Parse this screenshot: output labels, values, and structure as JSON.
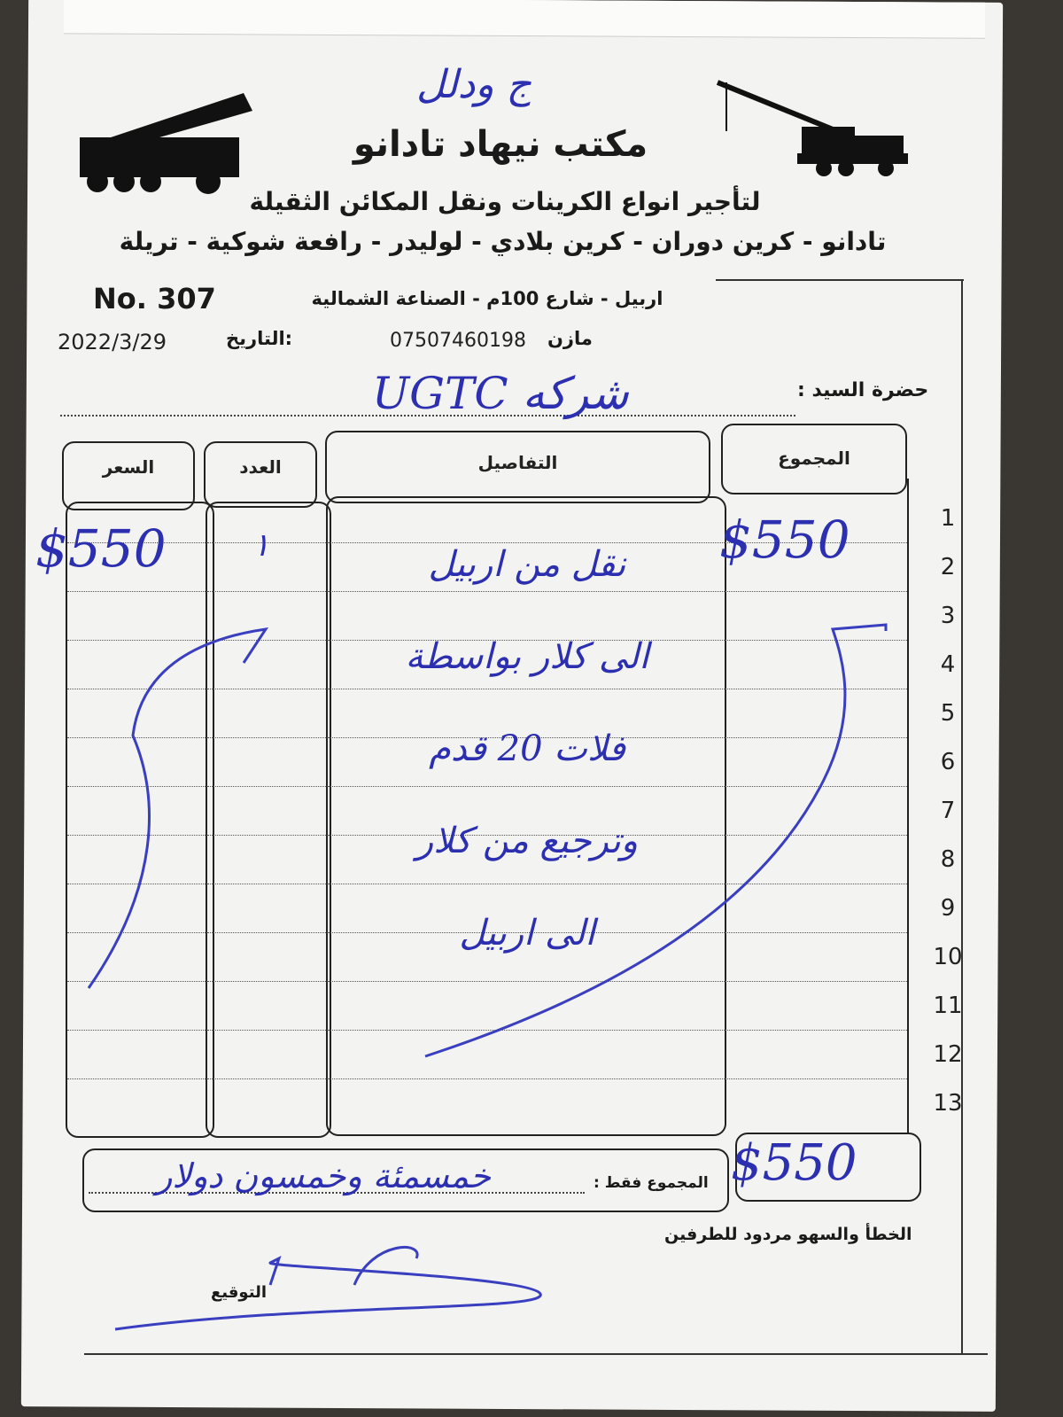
{
  "header": {
    "handwritten_note": "ج ودلل",
    "company_name": "مكتب نيهاد تادانو",
    "tagline": "لتأجير انواع الكرينات ونقل المكائن الثقيلة",
    "services": "تادانو - كرين دوران - كرين بلادي - لوليدر - رافعة شوكية - تريلة",
    "receipt_number": "No. 307",
    "address": "اربيل - شارع 100م - الصناعة الشمالية",
    "date_label": "التاريخ:",
    "date_value": "2022/3/29",
    "contact_name": "مازن",
    "phone": "07507460198"
  },
  "customer": {
    "label": "حضرة السيد :",
    "value": "شركه UGTC"
  },
  "table": {
    "headers": {
      "price": "السعر",
      "quantity": "العدد",
      "details": "التفاصيل",
      "total": "المجموع"
    },
    "row_numbers": [
      "1",
      "2",
      "3",
      "4",
      "5",
      "6",
      "7",
      "8",
      "9",
      "10",
      "11",
      "12",
      "13"
    ],
    "price": "$550",
    "quantity": "١",
    "total": "$550",
    "details_lines": [
      "نقل من اربيل",
      "الى كلار بواسطة",
      "فلات 20 قدم",
      "وترجيع من كلار",
      "الى اربيل"
    ]
  },
  "footer": {
    "sum_label": "المجموع فقط :",
    "sum_words": "خمسمئة وخمسون دولار",
    "grand_total": "$550",
    "disclaimer": "الخطأ والسهو مردود للطرفين",
    "signature_label": "التوقيع"
  },
  "colors": {
    "ink": "#2b2fb0",
    "print": "#1a1a1a",
    "paper": "#f3f3f1"
  }
}
